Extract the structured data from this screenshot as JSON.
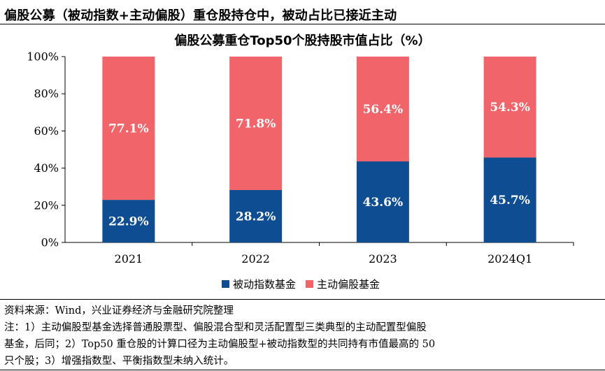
{
  "headline": "偏股公募（被动指数+主动偏股）重仓股持仓中，被动占比已接近主动",
  "chart_data": {
    "type": "bar",
    "stacked": true,
    "title": "偏股公募重仓Top50个股持股市值占比（%）",
    "categories": [
      "2021",
      "2022",
      "2023",
      "2024Q1"
    ],
    "series": [
      {
        "name": "被动指数基金",
        "color": "#0e4d92",
        "values": [
          22.9,
          28.2,
          43.6,
          45.7
        ],
        "labels": [
          "22.9%",
          "28.2%",
          "43.6%",
          "45.7%"
        ]
      },
      {
        "name": "主动偏股基金",
        "color": "#f0646a",
        "values": [
          77.1,
          71.8,
          56.4,
          54.3
        ],
        "labels": [
          "77.1%",
          "71.8%",
          "56.4%",
          "54.3%"
        ]
      }
    ],
    "ylim": [
      0,
      100
    ],
    "yticks": [
      "0%",
      "20%",
      "40%",
      "60%",
      "80%",
      "100%"
    ],
    "xlabel": "",
    "ylabel": "",
    "legend": "bottom-center",
    "grid": false
  },
  "footnotes": {
    "source": "资料来源：Wind，兴业证券经济与金融研究院整理",
    "note_line1": "注：1）主动偏股型基金选择普通股票型、偏股混合型和灵活配置型三类典型的主动配置型偏股",
    "note_line2": "基金，后同；2）Top50 重仓股的计算口径为主动偏股型+被动指数型的共同持有市值最高的 50",
    "note_line3": "只个股；3）增强指数型、平衡指数型未纳入统计。"
  }
}
